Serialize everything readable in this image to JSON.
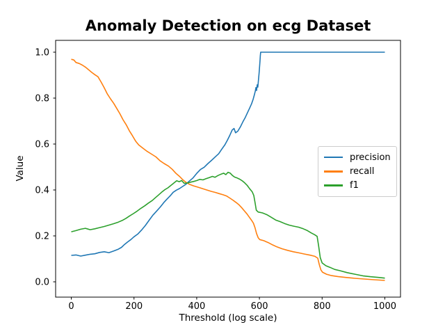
{
  "chart_data": {
    "type": "line",
    "title": "Anomaly Detection on ecg Dataset",
    "xlabel": "Threshold (log scale)",
    "ylabel": "Value",
    "xlim": [
      -50,
      1050
    ],
    "ylim": [
      -0.0667,
      1.0515
    ],
    "grid": false,
    "legend_position": "center right",
    "x_ticks": [
      {
        "value": 0,
        "label": "0"
      },
      {
        "value": 200,
        "label": "200"
      },
      {
        "value": 400,
        "label": "400"
      },
      {
        "value": 600,
        "label": "600"
      },
      {
        "value": 800,
        "label": "800"
      },
      {
        "value": 1000,
        "label": "1000"
      }
    ],
    "y_ticks": [
      {
        "value": 0.0,
        "label": "0.0"
      },
      {
        "value": 0.2,
        "label": "0.2"
      },
      {
        "value": 0.4,
        "label": "0.4"
      },
      {
        "value": 0.6,
        "label": "0.6"
      },
      {
        "value": 0.8,
        "label": "0.8"
      },
      {
        "value": 1.0,
        "label": "1.0"
      }
    ],
    "axis_color": "#000000",
    "series": [
      {
        "name": "precision",
        "color": "#1f77b4",
        "points": [
          [
            0,
            0.115
          ],
          [
            15,
            0.117
          ],
          [
            30,
            0.112
          ],
          [
            45,
            0.116
          ],
          [
            60,
            0.12
          ],
          [
            75,
            0.122
          ],
          [
            90,
            0.128
          ],
          [
            105,
            0.131
          ],
          [
            120,
            0.127
          ],
          [
            135,
            0.134
          ],
          [
            150,
            0.142
          ],
          [
            160,
            0.15
          ],
          [
            170,
            0.163
          ],
          [
            180,
            0.174
          ],
          [
            190,
            0.184
          ],
          [
            200,
            0.196
          ],
          [
            212,
            0.208
          ],
          [
            224,
            0.225
          ],
          [
            236,
            0.245
          ],
          [
            248,
            0.268
          ],
          [
            260,
            0.29
          ],
          [
            272,
            0.308
          ],
          [
            284,
            0.326
          ],
          [
            295,
            0.345
          ],
          [
            305,
            0.36
          ],
          [
            315,
            0.374
          ],
          [
            325,
            0.39
          ],
          [
            335,
            0.399
          ],
          [
            345,
            0.406
          ],
          [
            355,
            0.415
          ],
          [
            365,
            0.424
          ],
          [
            375,
            0.437
          ],
          [
            388,
            0.452
          ],
          [
            400,
            0.472
          ],
          [
            412,
            0.489
          ],
          [
            424,
            0.499
          ],
          [
            436,
            0.515
          ],
          [
            448,
            0.53
          ],
          [
            460,
            0.545
          ],
          [
            470,
            0.558
          ],
          [
            480,
            0.578
          ],
          [
            490,
            0.597
          ],
          [
            498,
            0.617
          ],
          [
            506,
            0.639
          ],
          [
            513,
            0.661
          ],
          [
            519,
            0.668
          ],
          [
            524,
            0.649
          ],
          [
            531,
            0.656
          ],
          [
            539,
            0.674
          ],
          [
            547,
            0.696
          ],
          [
            555,
            0.716
          ],
          [
            562,
            0.737
          ],
          [
            569,
            0.757
          ],
          [
            575,
            0.775
          ],
          [
            580,
            0.795
          ],
          [
            584,
            0.815
          ],
          [
            587,
            0.831
          ],
          [
            589,
            0.846
          ],
          [
            591,
            0.833
          ],
          [
            593,
            0.858
          ],
          [
            595,
            0.848
          ],
          [
            597,
            0.878
          ],
          [
            599,
            0.908
          ],
          [
            601,
            0.944
          ],
          [
            602,
            0.965
          ],
          [
            603,
            0.985
          ],
          [
            604,
            1.0
          ],
          [
            1000,
            1.0
          ]
        ]
      },
      {
        "name": "recall",
        "color": "#ff7f0e",
        "points": [
          [
            0,
            0.969
          ],
          [
            8,
            0.966
          ],
          [
            15,
            0.955
          ],
          [
            25,
            0.951
          ],
          [
            35,
            0.944
          ],
          [
            45,
            0.935
          ],
          [
            55,
            0.924
          ],
          [
            65,
            0.912
          ],
          [
            75,
            0.902
          ],
          [
            85,
            0.893
          ],
          [
            95,
            0.87
          ],
          [
            105,
            0.845
          ],
          [
            115,
            0.818
          ],
          [
            125,
            0.797
          ],
          [
            135,
            0.778
          ],
          [
            145,
            0.755
          ],
          [
            155,
            0.732
          ],
          [
            165,
            0.706
          ],
          [
            175,
            0.684
          ],
          [
            185,
            0.658
          ],
          [
            195,
            0.636
          ],
          [
            205,
            0.613
          ],
          [
            215,
            0.596
          ],
          [
            228,
            0.582
          ],
          [
            242,
            0.568
          ],
          [
            256,
            0.556
          ],
          [
            270,
            0.544
          ],
          [
            283,
            0.527
          ],
          [
            296,
            0.515
          ],
          [
            310,
            0.504
          ],
          [
            322,
            0.49
          ],
          [
            334,
            0.472
          ],
          [
            346,
            0.458
          ],
          [
            356,
            0.444
          ],
          [
            366,
            0.433
          ],
          [
            376,
            0.425
          ],
          [
            390,
            0.418
          ],
          [
            404,
            0.412
          ],
          [
            418,
            0.406
          ],
          [
            432,
            0.4
          ],
          [
            446,
            0.394
          ],
          [
            460,
            0.389
          ],
          [
            472,
            0.384
          ],
          [
            484,
            0.379
          ],
          [
            495,
            0.374
          ],
          [
            505,
            0.365
          ],
          [
            515,
            0.356
          ],
          [
            525,
            0.346
          ],
          [
            535,
            0.335
          ],
          [
            544,
            0.322
          ],
          [
            552,
            0.309
          ],
          [
            560,
            0.296
          ],
          [
            568,
            0.281
          ],
          [
            575,
            0.268
          ],
          [
            581,
            0.255
          ],
          [
            586,
            0.235
          ],
          [
            591,
            0.21
          ],
          [
            596,
            0.192
          ],
          [
            601,
            0.184
          ],
          [
            614,
            0.179
          ],
          [
            628,
            0.171
          ],
          [
            642,
            0.161
          ],
          [
            656,
            0.152
          ],
          [
            672,
            0.144
          ],
          [
            690,
            0.137
          ],
          [
            708,
            0.131
          ],
          [
            726,
            0.126
          ],
          [
            744,
            0.121
          ],
          [
            762,
            0.116
          ],
          [
            777,
            0.111
          ],
          [
            786,
            0.103
          ],
          [
            791,
            0.075
          ],
          [
            796,
            0.052
          ],
          [
            801,
            0.042
          ],
          [
            814,
            0.033
          ],
          [
            830,
            0.027
          ],
          [
            850,
            0.023
          ],
          [
            875,
            0.019
          ],
          [
            905,
            0.015
          ],
          [
            935,
            0.012
          ],
          [
            965,
            0.009
          ],
          [
            1000,
            0.006
          ]
        ]
      },
      {
        "name": "f1",
        "color": "#2ca02c",
        "points": [
          [
            0,
            0.218
          ],
          [
            15,
            0.223
          ],
          [
            30,
            0.229
          ],
          [
            45,
            0.233
          ],
          [
            60,
            0.227
          ],
          [
            75,
            0.231
          ],
          [
            90,
            0.236
          ],
          [
            105,
            0.241
          ],
          [
            120,
            0.247
          ],
          [
            135,
            0.253
          ],
          [
            150,
            0.26
          ],
          [
            162,
            0.267
          ],
          [
            174,
            0.276
          ],
          [
            186,
            0.287
          ],
          [
            198,
            0.297
          ],
          [
            210,
            0.308
          ],
          [
            222,
            0.32
          ],
          [
            234,
            0.331
          ],
          [
            246,
            0.343
          ],
          [
            258,
            0.354
          ],
          [
            268,
            0.366
          ],
          [
            278,
            0.378
          ],
          [
            288,
            0.39
          ],
          [
            298,
            0.401
          ],
          [
            308,
            0.409
          ],
          [
            318,
            0.42
          ],
          [
            328,
            0.431
          ],
          [
            336,
            0.44
          ],
          [
            344,
            0.436
          ],
          [
            352,
            0.441
          ],
          [
            360,
            0.429
          ],
          [
            370,
            0.43
          ],
          [
            380,
            0.434
          ],
          [
            390,
            0.437
          ],
          [
            400,
            0.441
          ],
          [
            410,
            0.446
          ],
          [
            420,
            0.444
          ],
          [
            430,
            0.449
          ],
          [
            440,
            0.454
          ],
          [
            450,
            0.459
          ],
          [
            458,
            0.455
          ],
          [
            468,
            0.463
          ],
          [
            478,
            0.469
          ],
          [
            486,
            0.473
          ],
          [
            493,
            0.467
          ],
          [
            500,
            0.477
          ],
          [
            507,
            0.473
          ],
          [
            514,
            0.463
          ],
          [
            521,
            0.456
          ],
          [
            529,
            0.452
          ],
          [
            537,
            0.447
          ],
          [
            545,
            0.44
          ],
          [
            553,
            0.431
          ],
          [
            561,
            0.42
          ],
          [
            569,
            0.405
          ],
          [
            577,
            0.392
          ],
          [
            582,
            0.376
          ],
          [
            586,
            0.345
          ],
          [
            590,
            0.312
          ],
          [
            596,
            0.304
          ],
          [
            610,
            0.3
          ],
          [
            624,
            0.292
          ],
          [
            638,
            0.281
          ],
          [
            652,
            0.269
          ],
          [
            666,
            0.262
          ],
          [
            680,
            0.254
          ],
          [
            695,
            0.247
          ],
          [
            710,
            0.242
          ],
          [
            725,
            0.238
          ],
          [
            740,
            0.231
          ],
          [
            753,
            0.223
          ],
          [
            765,
            0.213
          ],
          [
            776,
            0.205
          ],
          [
            784,
            0.198
          ],
          [
            789,
            0.155
          ],
          [
            794,
            0.105
          ],
          [
            800,
            0.082
          ],
          [
            812,
            0.07
          ],
          [
            825,
            0.063
          ],
          [
            840,
            0.054
          ],
          [
            858,
            0.048
          ],
          [
            880,
            0.04
          ],
          [
            905,
            0.033
          ],
          [
            930,
            0.026
          ],
          [
            955,
            0.022
          ],
          [
            980,
            0.019
          ],
          [
            1000,
            0.016
          ]
        ]
      }
    ]
  }
}
